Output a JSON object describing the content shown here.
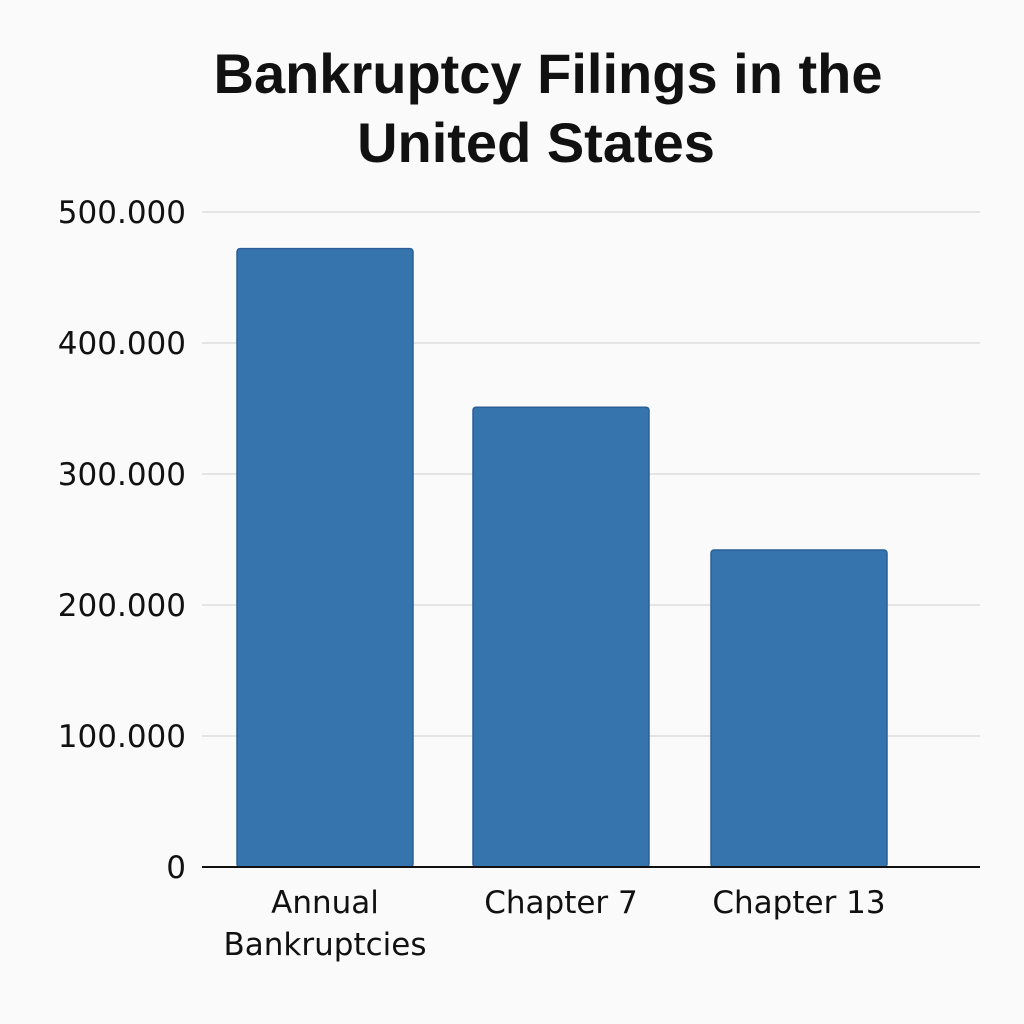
{
  "chart_data": {
    "type": "bar",
    "title_lines": [
      "Bankruptcy Filings in the",
      "United States"
    ],
    "categories": [
      [
        "Annual",
        "Bankruptcies"
      ],
      [
        "Chapter 7"
      ],
      [
        "Chapter 13"
      ]
    ],
    "values": [
      472000,
      351000,
      242000
    ],
    "xlabel": "",
    "ylabel": "",
    "ylim": [
      0,
      500000
    ],
    "y_ticks": [
      {
        "value": 0,
        "label": "0"
      },
      {
        "value": 100000,
        "label": "100.000"
      },
      {
        "value": 200000,
        "label": "200.000"
      },
      {
        "value": 300000,
        "label": "300.000"
      },
      {
        "value": 400000,
        "label": "400.000"
      },
      {
        "value": 500000,
        "label": "500.000"
      }
    ],
    "grid": true,
    "legend": "none",
    "bar_color": "#3674ae"
  }
}
